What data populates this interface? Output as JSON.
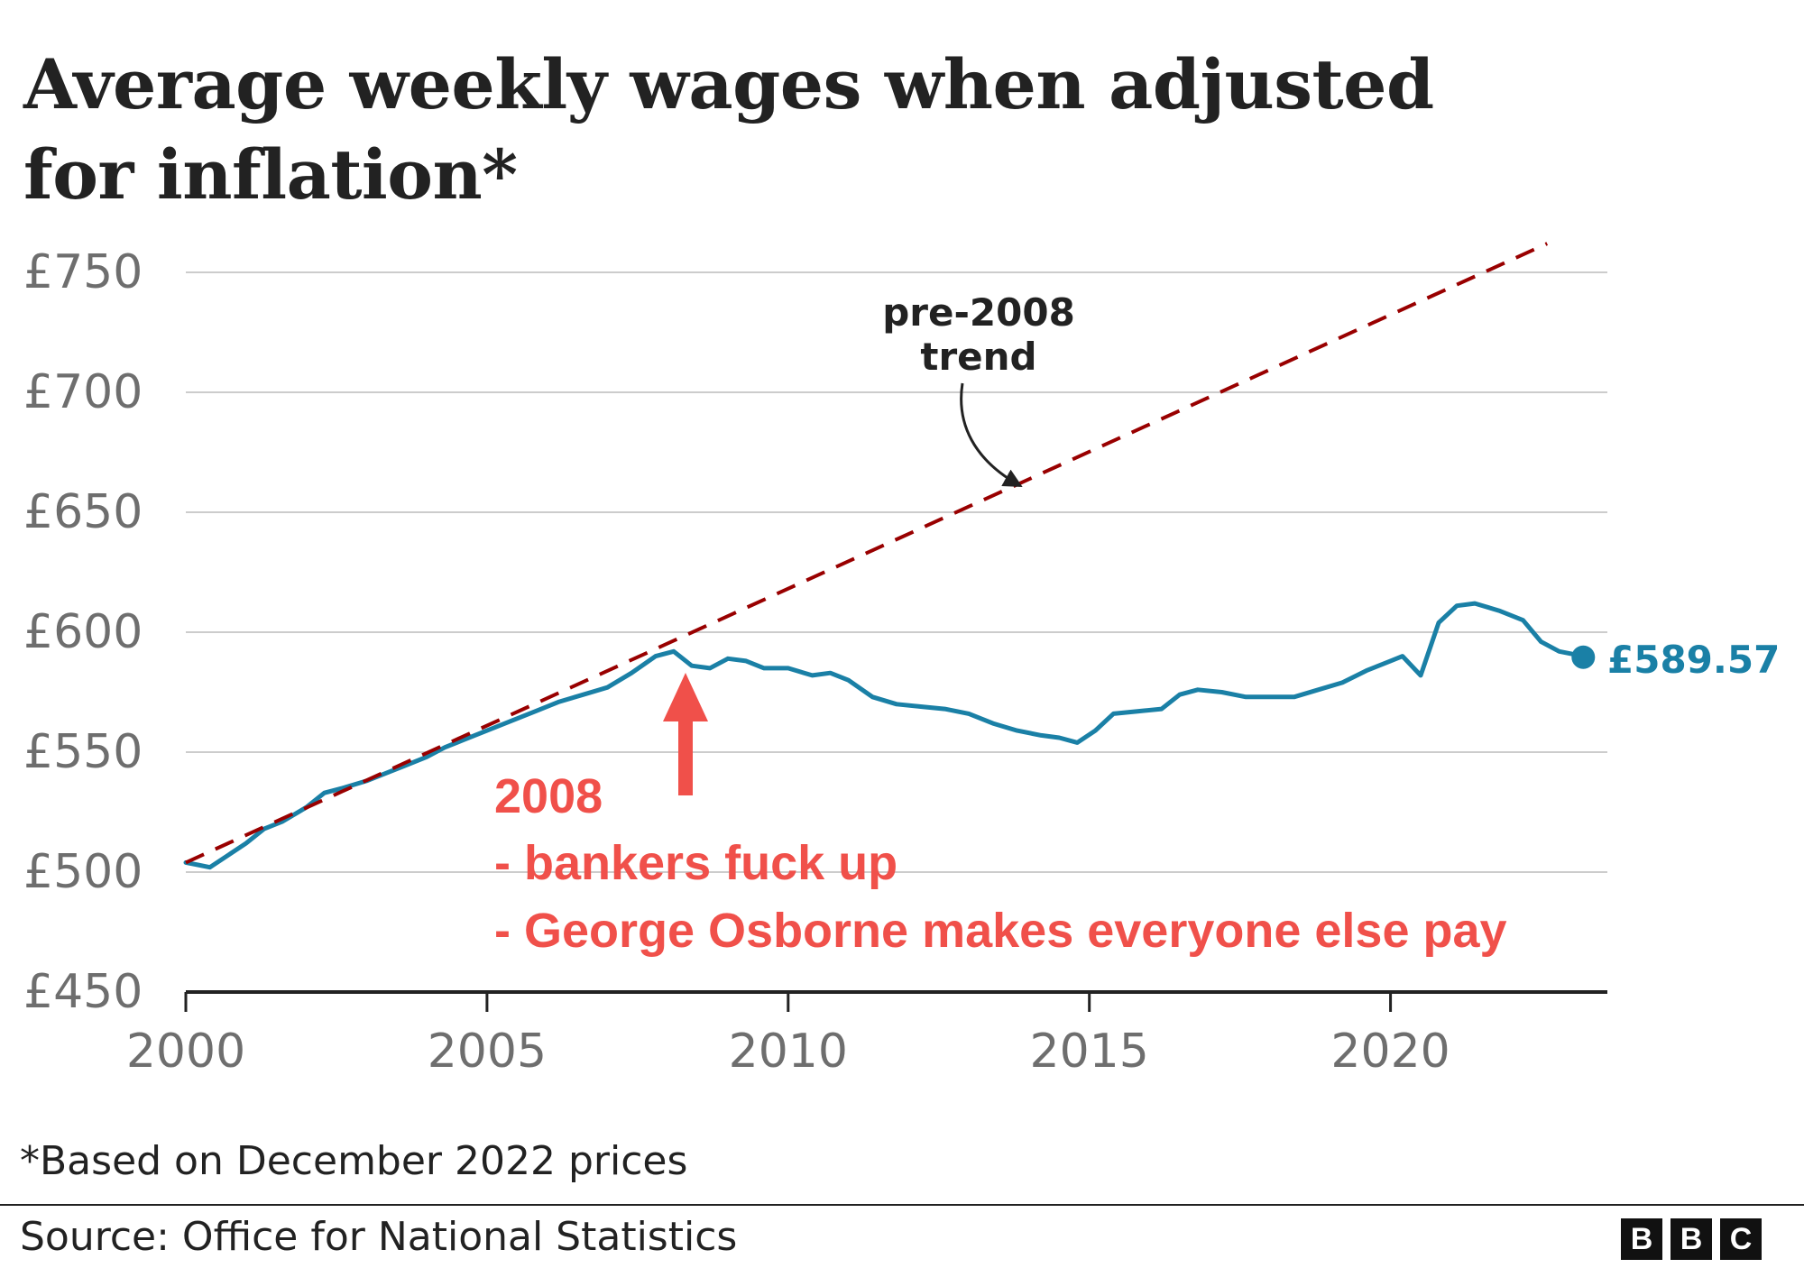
{
  "title_lines": [
    "Average weekly wages when adjusted",
    "for inflation*"
  ],
  "footnote": "*Based on December 2022 prices",
  "source": "Source: Office for National Statistics",
  "logo_letters": [
    "B",
    "B",
    "C"
  ],
  "colors": {
    "wage_line": "#1a80a6",
    "trend_line": "#990000",
    "annotation_red": "#f0504a",
    "grid": "#cccccc",
    "axis": "#222222",
    "tick_label": "#6e6e6e"
  },
  "chart_data": {
    "type": "line",
    "xlim": [
      2000,
      2023.6
    ],
    "ylim": [
      450,
      750
    ],
    "y_ticks": [
      {
        "value": 450,
        "label": "£450"
      },
      {
        "value": 500,
        "label": "£500"
      },
      {
        "value": 550,
        "label": "£550"
      },
      {
        "value": 600,
        "label": "£600"
      },
      {
        "value": 650,
        "label": "£650"
      },
      {
        "value": 700,
        "label": "£700"
      },
      {
        "value": 750,
        "label": "£750"
      }
    ],
    "x_ticks": [
      {
        "value": 2000,
        "label": "2000"
      },
      {
        "value": 2005,
        "label": "2005"
      },
      {
        "value": 2010,
        "label": "2010"
      },
      {
        "value": 2015,
        "label": "2015"
      },
      {
        "value": 2020,
        "label": "2020"
      }
    ],
    "grid": true,
    "series": [
      {
        "key": "wages",
        "style": "solid",
        "x": [
          2000.0,
          2000.2,
          2000.4,
          2000.7,
          2001.0,
          2001.3,
          2001.6,
          2002.0,
          2002.3,
          2002.6,
          2003.0,
          2003.3,
          2003.6,
          2004.0,
          2004.3,
          2004.6,
          2005.0,
          2005.4,
          2005.8,
          2006.2,
          2006.6,
          2007.0,
          2007.4,
          2007.8,
          2008.1,
          2008.4,
          2008.7,
          2009.0,
          2009.3,
          2009.6,
          2010.0,
          2010.4,
          2010.7,
          2011.0,
          2011.4,
          2011.8,
          2012.2,
          2012.6,
          2013.0,
          2013.4,
          2013.8,
          2014.2,
          2014.5,
          2014.8,
          2015.1,
          2015.4,
          2015.8,
          2016.2,
          2016.5,
          2016.8,
          2017.2,
          2017.6,
          2018.0,
          2018.4,
          2018.8,
          2019.2,
          2019.6,
          2020.0,
          2020.2,
          2020.5,
          2020.8,
          2021.1,
          2021.4,
          2021.8,
          2022.2,
          2022.5,
          2022.8,
          2023.0,
          2023.2
        ],
        "y": [
          504,
          503,
          502,
          507,
          512,
          518,
          521,
          527,
          533,
          535,
          538,
          541,
          544,
          548,
          552,
          555,
          559,
          563,
          567,
          571,
          574,
          577,
          583,
          590,
          592,
          586,
          585,
          589,
          588,
          585,
          585,
          582,
          583,
          580,
          573,
          570,
          569,
          568,
          566,
          562,
          559,
          557,
          556,
          554,
          559,
          566,
          567,
          568,
          574,
          576,
          575,
          573,
          573,
          573,
          576,
          579,
          584,
          588,
          590,
          582,
          604,
          611,
          612,
          609,
          605,
          596,
          592,
          591,
          589.57
        ]
      },
      {
        "key": "pre_2008_trend",
        "style": "dashed",
        "label_lines": [
          "pre-2008",
          "trend"
        ],
        "x": [
          2000.0,
          2022.6
        ],
        "y": [
          504,
          762
        ]
      }
    ],
    "end_label": "£589.57",
    "annotation": {
      "lines": [
        "2008",
        "- bankers fuck up",
        "- George Osborne makes everyone else pay"
      ],
      "arrow_x": 2008.1
    }
  }
}
